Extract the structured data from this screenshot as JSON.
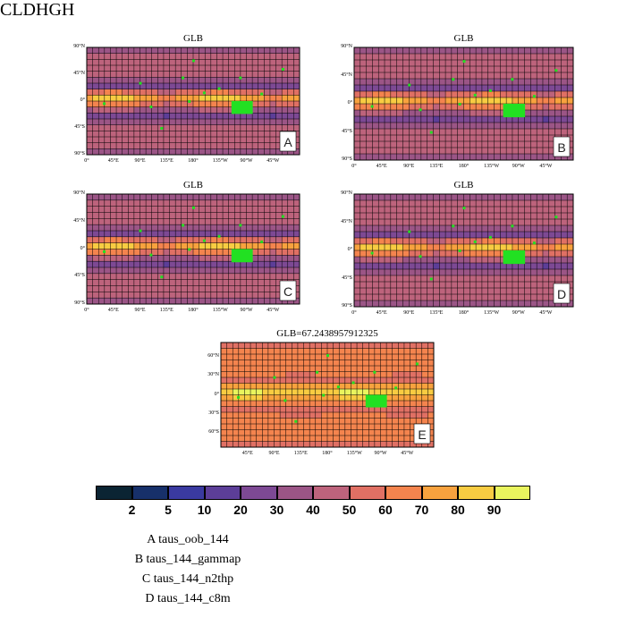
{
  "title": "CLDHGH",
  "chart_data": [
    {
      "type": "heatmap",
      "panel": "A",
      "title": "GLB",
      "lat_ticks": [
        "90°N",
        "45°N",
        "0°",
        "45°S",
        "90°S"
      ],
      "lon_ticks": [
        "0°",
        "45°E",
        "90°E",
        "135°E",
        "180°",
        "135°W",
        "90°W",
        "45°W"
      ]
    },
    {
      "type": "heatmap",
      "panel": "B",
      "title": "GLB",
      "lat_ticks": [
        "90°N",
        "45°N",
        "0°",
        "45°S",
        "90°S"
      ],
      "lon_ticks": [
        "0°",
        "45°E",
        "90°E",
        "135°E",
        "180°",
        "135°W",
        "90°W",
        "45°W"
      ]
    },
    {
      "type": "heatmap",
      "panel": "C",
      "title": "GLB",
      "lat_ticks": [
        "90°N",
        "45°N",
        "0°",
        "45°S",
        "90°S"
      ],
      "lon_ticks": [
        "0°",
        "45°E",
        "90°E",
        "135°E",
        "180°",
        "135°W",
        "90°W",
        "45°W"
      ]
    },
    {
      "type": "heatmap",
      "panel": "D",
      "title": "GLB",
      "lat_ticks": [
        "90°N",
        "45°N",
        "0°",
        "45°S",
        "90°S"
      ],
      "lon_ticks": [
        "0°",
        "45°E",
        "90°E",
        "135°E",
        "180°",
        "135°W",
        "90°W",
        "45°W"
      ]
    },
    {
      "type": "heatmap",
      "panel": "E",
      "title": "GLB=67.2438957912325",
      "lat_ticks": [
        "60°N",
        "30°N",
        "0°",
        "30°S",
        "60°S"
      ],
      "lon_ticks": [
        "45°E",
        "90°E",
        "135°E",
        "180°",
        "135°W",
        "90°W",
        "45°W"
      ]
    }
  ],
  "colorbar": {
    "colors": [
      "#0b2433",
      "#17306a",
      "#3a3aa0",
      "#5c3e98",
      "#7d4994",
      "#9b5586",
      "#bd637c",
      "#e07064",
      "#f4844e",
      "#f8a23e",
      "#f8cc42",
      "#e9f55e"
    ],
    "labels": [
      "2",
      "5",
      "10",
      "20",
      "30",
      "40",
      "50",
      "60",
      "70",
      "80",
      "90"
    ]
  },
  "legend": [
    "A  taus_oob_144",
    "B  taus_144_gammap",
    "C  taus_144_n2thp",
    "D  taus_144_c8m"
  ]
}
